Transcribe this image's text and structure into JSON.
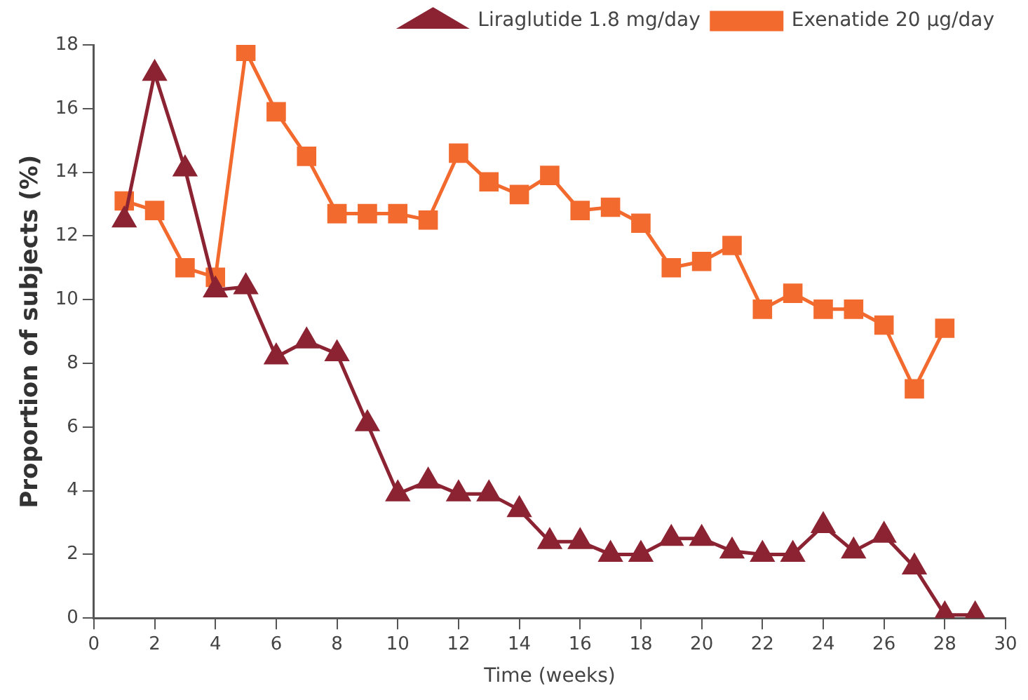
{
  "chart_data": {
    "type": "line",
    "xlabel": "Time (weeks)",
    "ylabel": "Proportion of subjects (%)",
    "xlim": [
      0,
      30
    ],
    "xticks": [
      0,
      2,
      4,
      6,
      8,
      10,
      12,
      14,
      16,
      18,
      20,
      22,
      24,
      26,
      28,
      30
    ],
    "ylim": [
      0,
      18
    ],
    "yticks": [
      0,
      2,
      4,
      6,
      8,
      10,
      12,
      14,
      16,
      18
    ],
    "grid": false,
    "legend": "top right",
    "series": [
      {
        "name": "Liraglutide 1.8 mg/day",
        "color": "#8b2332",
        "marker": "triangle",
        "x": [
          1,
          2,
          3,
          4,
          5,
          6,
          7,
          8,
          9,
          10,
          11,
          12,
          13,
          14,
          15,
          16,
          17,
          18,
          19,
          20,
          21,
          22,
          23,
          24,
          25,
          26,
          27,
          28,
          29
        ],
        "values": [
          12.5,
          17.1,
          14.1,
          10.3,
          10.4,
          8.2,
          8.7,
          8.3,
          6.1,
          3.9,
          4.3,
          3.9,
          3.9,
          3.4,
          2.4,
          2.4,
          2.0,
          2.0,
          2.5,
          2.5,
          2.1,
          2.0,
          2.0,
          2.9,
          2.1,
          2.6,
          1.6,
          0.1,
          0.1
        ]
      },
      {
        "name": "Exenatide 20 µg/day",
        "color": "#f26a2e",
        "marker": "square",
        "x": [
          1,
          2,
          3,
          4,
          5,
          6,
          7,
          8,
          9,
          10,
          11,
          12,
          13,
          14,
          15,
          16,
          17,
          18,
          19,
          20,
          21,
          22,
          23,
          24,
          25,
          26,
          27,
          28
        ],
        "values": [
          13.1,
          12.8,
          11.0,
          10.7,
          17.8,
          15.9,
          14.5,
          12.7,
          12.7,
          12.7,
          12.5,
          14.6,
          13.7,
          13.3,
          13.9,
          12.8,
          12.9,
          12.4,
          11.0,
          11.2,
          11.7,
          9.7,
          10.2,
          9.7,
          9.7,
          9.2,
          7.2,
          9.1
        ]
      }
    ]
  }
}
